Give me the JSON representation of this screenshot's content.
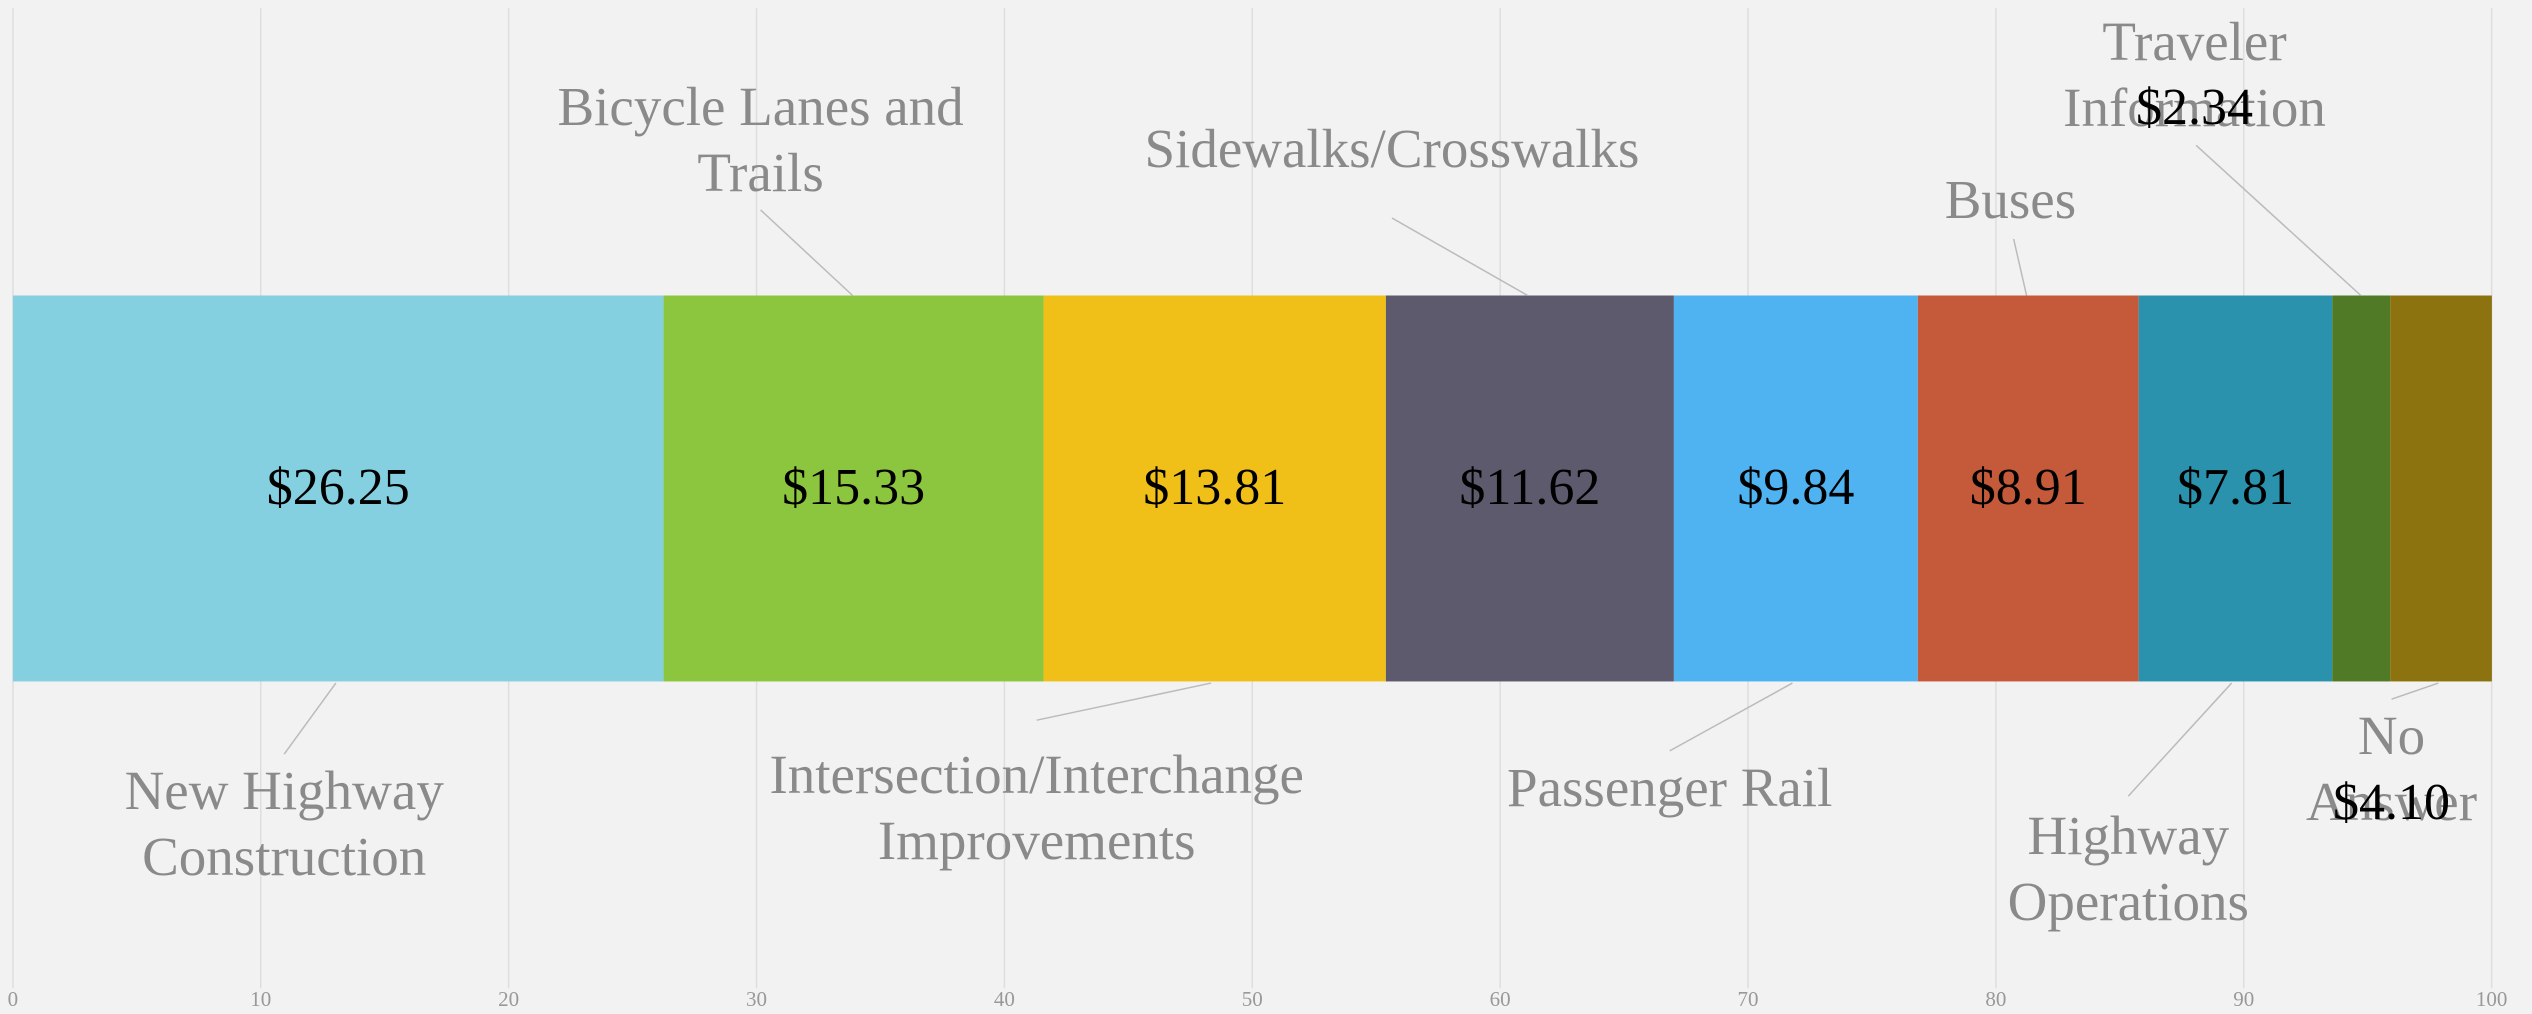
{
  "chart_data": {
    "type": "stacked-bar",
    "categories": [
      "New Highway\nConstruction",
      "Bicycle Lanes and\nTrails",
      "Intersection/Interchange\nImprovements",
      "Sidewalks/Crosswalks",
      "Passenger Rail",
      "Buses",
      "Highway\nOperations",
      "Traveler Information",
      "No Answer"
    ],
    "values": [
      26.25,
      15.33,
      13.81,
      11.62,
      9.84,
      8.91,
      7.81,
      2.34,
      4.1
    ],
    "value_labels": [
      "$26.25",
      "$15.33",
      "$13.81",
      "$11.62",
      "$9.84",
      "$8.91",
      "$7.81",
      "$2.34",
      "$4.10"
    ],
    "colors": [
      "#84cfe0",
      "#8cc63f",
      "#f0c018",
      "#5c5a6c",
      "#4fb3f2",
      "#c45a3a",
      "#2a92ad",
      "#507a25",
      "#8d7210"
    ],
    "xlim": [
      0,
      100
    ],
    "xticks": [
      0,
      10,
      20,
      30,
      40,
      50,
      60,
      70,
      80,
      90,
      100
    ],
    "grid": true
  }
}
